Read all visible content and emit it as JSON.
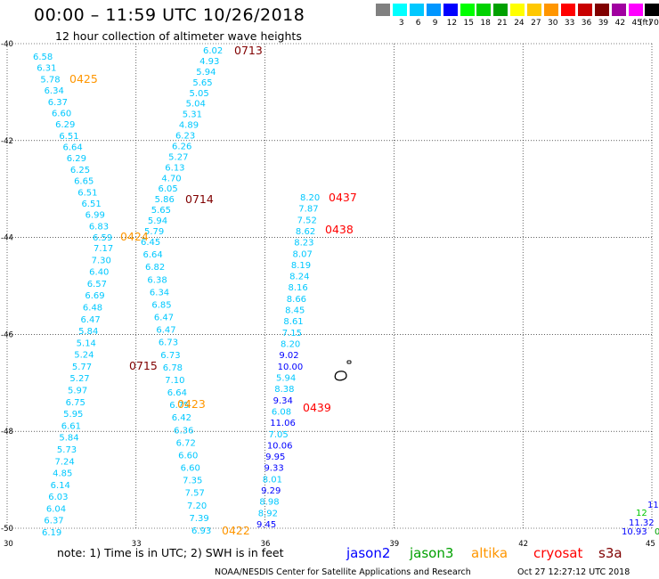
{
  "header": {
    "title": "00:00 – 11:59 UTC 10/26/2018",
    "subtitle": "12 hour collection of altimeter wave heights"
  },
  "legend": {
    "unit": "(ft)",
    "colors": [
      {
        "value": "",
        "color": "#808080"
      },
      {
        "value": "3",
        "color": "#00ffff"
      },
      {
        "value": "6",
        "color": "#00c8ff"
      },
      {
        "value": "9",
        "color": "#0096ff"
      },
      {
        "value": "12",
        "color": "#0000ff"
      },
      {
        "value": "15",
        "color": "#00ff00"
      },
      {
        "value": "18",
        "color": "#00d200"
      },
      {
        "value": "21",
        "color": "#00a000"
      },
      {
        "value": "24",
        "color": "#ffff00"
      },
      {
        "value": "27",
        "color": "#ffc800"
      },
      {
        "value": "30",
        "color": "#ff9600"
      },
      {
        "value": "33",
        "color": "#ff0000"
      },
      {
        "value": "36",
        "color": "#c80000"
      },
      {
        "value": "39",
        "color": "#800000"
      },
      {
        "value": "42",
        "color": "#a000a0"
      },
      {
        "value": "45",
        "color": "#ff00ff"
      },
      {
        "value": "70",
        "color": "#000000"
      }
    ]
  },
  "axes": {
    "lon_labels": [
      "30",
      "33",
      "36",
      "39",
      "42",
      "45"
    ],
    "lat_labels": [
      "-40",
      "-42",
      "-44",
      "-46",
      "-48",
      "-50"
    ]
  },
  "track_values": {
    "t1": [
      "6.58",
      "6.31",
      "5.78",
      "6.34",
      "6.37",
      "6.60",
      "6.29",
      "6.51",
      "6.64",
      "6.29",
      "6.25",
      "6.65",
      "6.51",
      "6.51",
      "6.99",
      "6.83",
      "6.59",
      "7.17",
      "7.30",
      "6.40",
      "6.57",
      "6.69",
      "6.48",
      "6.47",
      "5.84",
      "5.14",
      "5.24",
      "5.77",
      "5.27",
      "5.97",
      "6.75",
      "5.95",
      "6.61",
      "5.84",
      "5.73",
      "7.24",
      "4.85",
      "6.14",
      "6.03",
      "6.04",
      "6.37",
      "6.19"
    ],
    "t2": [
      "6.02",
      "4.93",
      "5.94",
      "5.65",
      "5.05",
      "5.04",
      "5.31",
      "4.89",
      "6.23",
      "6.26",
      "5.27",
      "6.13",
      "4.70",
      "6.05",
      "5.86",
      "5.65",
      "5.94",
      "5.79",
      "6.45",
      "6.64",
      "6.82",
      "6.38",
      "6.34",
      "6.85",
      "6.47",
      "6.47",
      "6.73",
      "6.73",
      "6.78",
      "7.10",
      "6.64",
      "6.75",
      "6.42",
      "6.36",
      "6.72",
      "6.60",
      "6.60",
      "7.35",
      "7.57",
      "7.20",
      "7.39",
      "6.93"
    ],
    "t3": [
      "8.20",
      "7.87",
      "7.52",
      "8.62",
      "8.23",
      "8.07",
      "8.19",
      "8.24",
      "8.16",
      "8.66",
      "8.45",
      "8.61",
      "7.15",
      "8.20",
      "9.02",
      "10.00",
      "5.94",
      "8.38",
      "9.34",
      "6.08",
      "11.06",
      "7.05",
      "10.06",
      "9.95",
      "9.33",
      "8.01",
      "9.29",
      "8.98",
      "8.92",
      "9.45"
    ],
    "edge": [
      "11",
      "12",
      "11.32",
      "10.93",
      "0"
    ]
  },
  "time_labels": [
    "0713",
    "0425",
    "0714",
    "0437",
    "0438",
    "0424",
    "0715",
    "0423",
    "0439",
    "0422"
  ],
  "footer": {
    "note": "note:  1) Time is in UTC;  2) SWH is in feet",
    "satellites": [
      {
        "name": "jason2",
        "color": "#0000ff"
      },
      {
        "name": "jason3",
        "color": "#00a000"
      },
      {
        "name": "altika",
        "color": "#ff9600"
      },
      {
        "name": "cryosat",
        "color": "#ff0000"
      },
      {
        "name": "s3a",
        "color": "#800000"
      }
    ],
    "credit": "NOAA/NESDIS Center for Satellite Applications and Research",
    "timestamp": "Oct 27 12:27:12 UTC 2018"
  }
}
